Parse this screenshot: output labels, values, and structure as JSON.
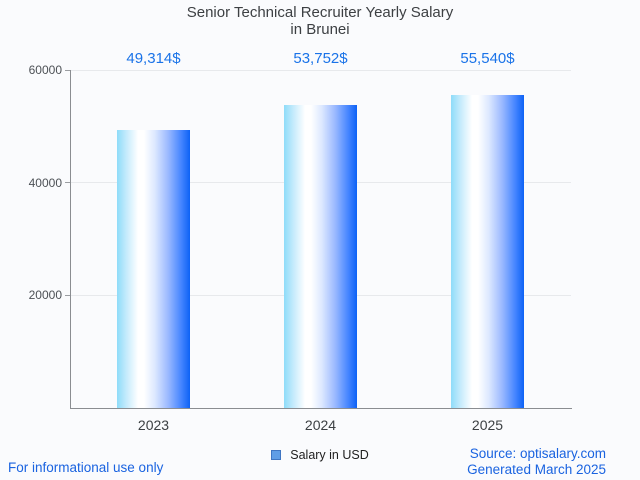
{
  "page": {
    "background": "#fafbfd"
  },
  "header": {
    "title_line1": "Senior Technical Recruiter Yearly Salary",
    "title_line2": "in Brunei"
  },
  "chart_data": {
    "type": "bar",
    "title": "Senior Technical Recruiter Yearly Salary in Brunei",
    "categories": [
      "2023",
      "2024",
      "2025"
    ],
    "values": [
      49314,
      53752,
      55540
    ],
    "value_labels": [
      "49,314$",
      "53,752$",
      "55,540$"
    ],
    "series": [
      {
        "name": "Salary in USD",
        "values": [
          49314,
          53752,
          55540
        ]
      }
    ],
    "xlabel": "",
    "ylabel": "",
    "ylim": [
      0,
      60000
    ],
    "yticks": [
      20000,
      40000,
      60000
    ],
    "ytick_labels": [
      "20000",
      "40000",
      "60000"
    ],
    "grid": true,
    "legend_position": "bottom",
    "bar_gradient_left": "#8edcf9",
    "bar_gradient_mid": "#ffffff",
    "bar_gradient_right": "#0d62f5",
    "value_label_color": "#1a73e8",
    "axis_color": "#8a8d91",
    "gridline_color": "#e7e9ec"
  },
  "legend": {
    "label": "Salary in USD",
    "swatch_fill": "#5f9de6",
    "swatch_border": "#3f75c2"
  },
  "footer": {
    "left_note": "For informational use only",
    "source": "Source: optisalary.com",
    "generated": "Generated March 2025"
  }
}
